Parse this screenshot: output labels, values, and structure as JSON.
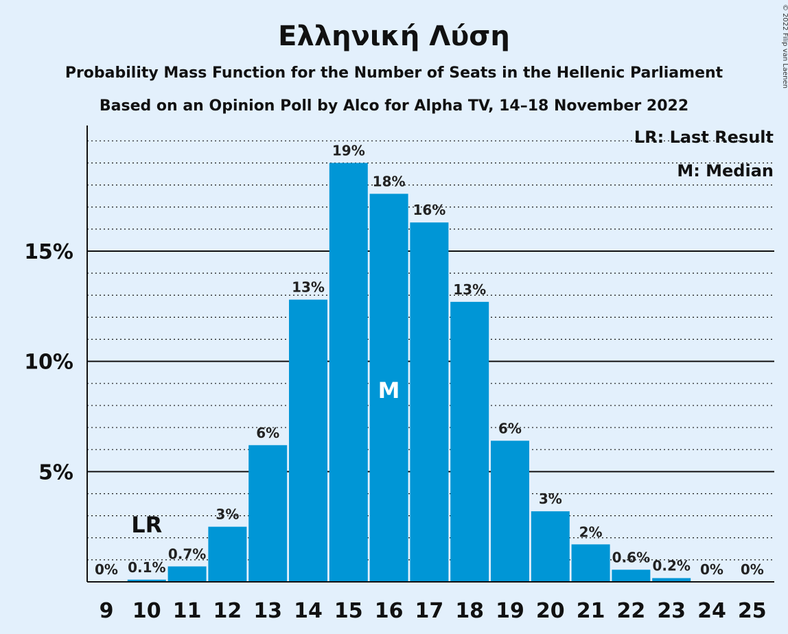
{
  "title": "Ελληνική Λύση",
  "subtitle1": "Probability Mass Function for the Number of Seats in the Hellenic Parliament",
  "subtitle2": "Based on an Opinion Poll by Alco for Alpha TV, 14–18 November 2022",
  "copyright": "© 2022 Filip van Laenen",
  "legend": {
    "last_result": "LR: Last Result",
    "median": "M: Median"
  },
  "colors": {
    "bar": "#0096d6",
    "background": "#e3f0fc"
  },
  "chart_data": {
    "type": "bar",
    "categories": [
      "9",
      "10",
      "11",
      "12",
      "13",
      "14",
      "15",
      "16",
      "17",
      "18",
      "19",
      "20",
      "21",
      "22",
      "23",
      "24",
      "25"
    ],
    "values": [
      0,
      0.1,
      0.7,
      2.5,
      6.2,
      12.8,
      19.0,
      17.6,
      16.3,
      12.7,
      6.4,
      3.2,
      1.7,
      0.55,
      0.17,
      0,
      0
    ],
    "value_labels": [
      "0%",
      "0.1%",
      "0.7%",
      "3%",
      "6%",
      "13%",
      "19%",
      "18%",
      "16%",
      "13%",
      "6%",
      "3%",
      "2%",
      "0.6%",
      "0.2%",
      "0%",
      "0%"
    ],
    "yticks": [
      5,
      10,
      15
    ],
    "ytick_labels": [
      "5%",
      "10%",
      "15%"
    ],
    "ylim": [
      0,
      20.7
    ],
    "last_result_category": "10",
    "last_result_marker": "LR",
    "median_category": "16",
    "median_marker": "M",
    "grid": "major solid, minor dotted every 1%"
  }
}
